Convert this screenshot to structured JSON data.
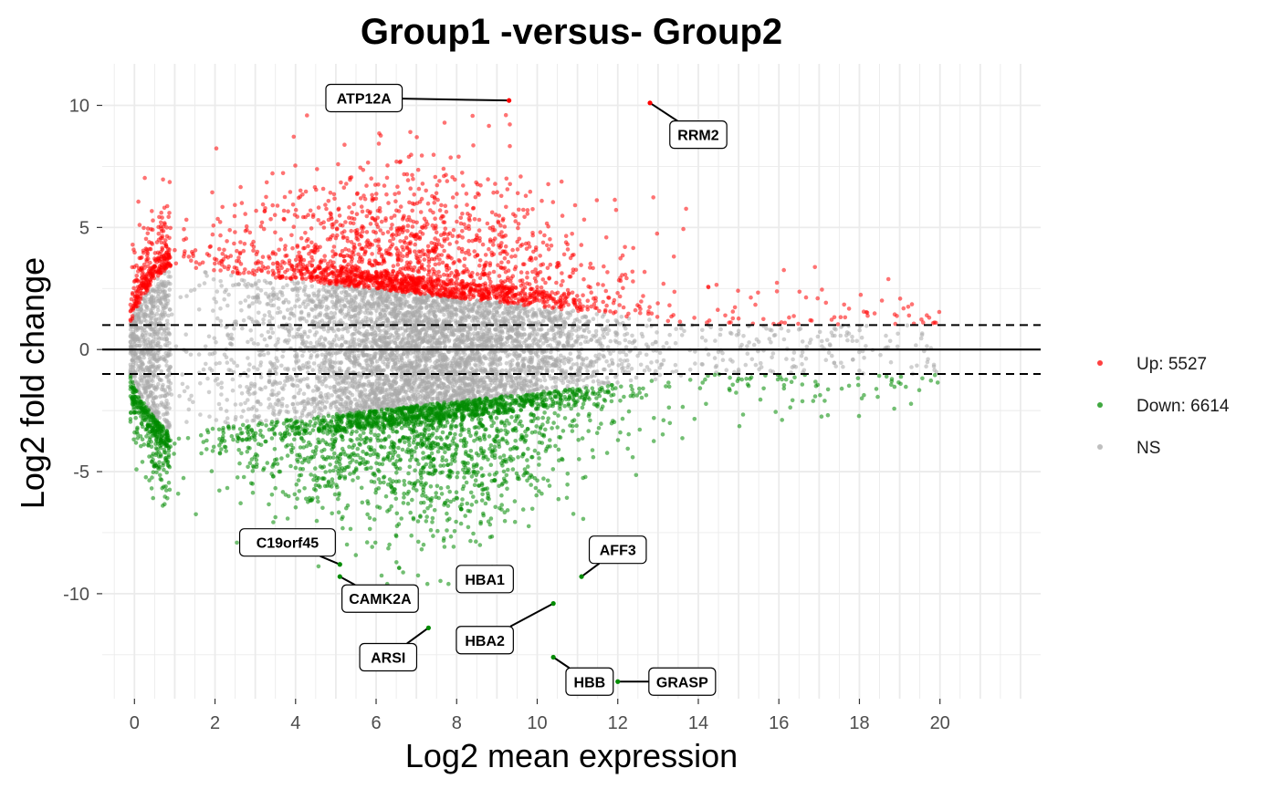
{
  "chart_data": {
    "type": "scatter",
    "title": "Group1 -versus- Group2",
    "xlabel": "Log2 mean expression",
    "ylabel": "Log2 fold change",
    "xlim": [
      -0.8,
      22.5
    ],
    "ylim": [
      -14.3,
      11.7
    ],
    "x_ticks": [
      0,
      2,
      4,
      6,
      8,
      10,
      12,
      14,
      16,
      18,
      20
    ],
    "x_tick_labels": [
      "0",
      "2",
      "4",
      "6",
      "8",
      "10",
      "12",
      "14",
      "16",
      "18",
      "20"
    ],
    "y_ticks": [
      -10,
      -5,
      0,
      5,
      10
    ],
    "y_tick_labels": [
      "-10",
      "-5",
      "0",
      "5",
      "10"
    ],
    "fold_change_threshold": 1,
    "grid": true,
    "legend_position": "right",
    "series": [
      {
        "name": "Up: 5527",
        "color": "#ff0000",
        "count": 5527
      },
      {
        "name": "Down: 6614",
        "color": "#008b00",
        "count": 6614
      },
      {
        "name": "NS",
        "color": "#a9a9a9"
      }
    ],
    "labeled_genes": [
      {
        "label": "ATP12A",
        "x": 9.3,
        "y": 10.2,
        "label_x": 5.7,
        "label_y": 10.3,
        "group": "up"
      },
      {
        "label": "RRM2",
        "x": 12.8,
        "y": 10.1,
        "label_x": 14.0,
        "label_y": 8.8,
        "group": "up"
      },
      {
        "label": "C19orf45",
        "x": 5.1,
        "y": -8.8,
        "label_x": 3.8,
        "label_y": -7.9,
        "group": "down"
      },
      {
        "label": "CAMK2A",
        "x": 5.1,
        "y": -9.3,
        "label_x": 6.1,
        "label_y": -10.2,
        "group": "down"
      },
      {
        "label": "HBA1",
        "x": 9.1,
        "y": -9.4,
        "label_x": 8.7,
        "label_y": -9.4,
        "group": "down"
      },
      {
        "label": "AFF3",
        "x": 11.1,
        "y": -9.3,
        "label_x": 12.0,
        "label_y": -8.2,
        "group": "down"
      },
      {
        "label": "HBA2",
        "x": 10.4,
        "y": -10.4,
        "label_x": 8.7,
        "label_y": -11.9,
        "group": "down"
      },
      {
        "label": "ARSI",
        "x": 7.3,
        "y": -11.4,
        "label_x": 6.3,
        "label_y": -12.6,
        "group": "down"
      },
      {
        "label": "HBB",
        "x": 10.4,
        "y": -12.6,
        "label_x": 11.3,
        "label_y": -13.6,
        "group": "down"
      },
      {
        "label": "GRASP",
        "x": 12.0,
        "y": -13.6,
        "label_x": 13.6,
        "label_y": -13.6,
        "group": "down"
      }
    ]
  }
}
